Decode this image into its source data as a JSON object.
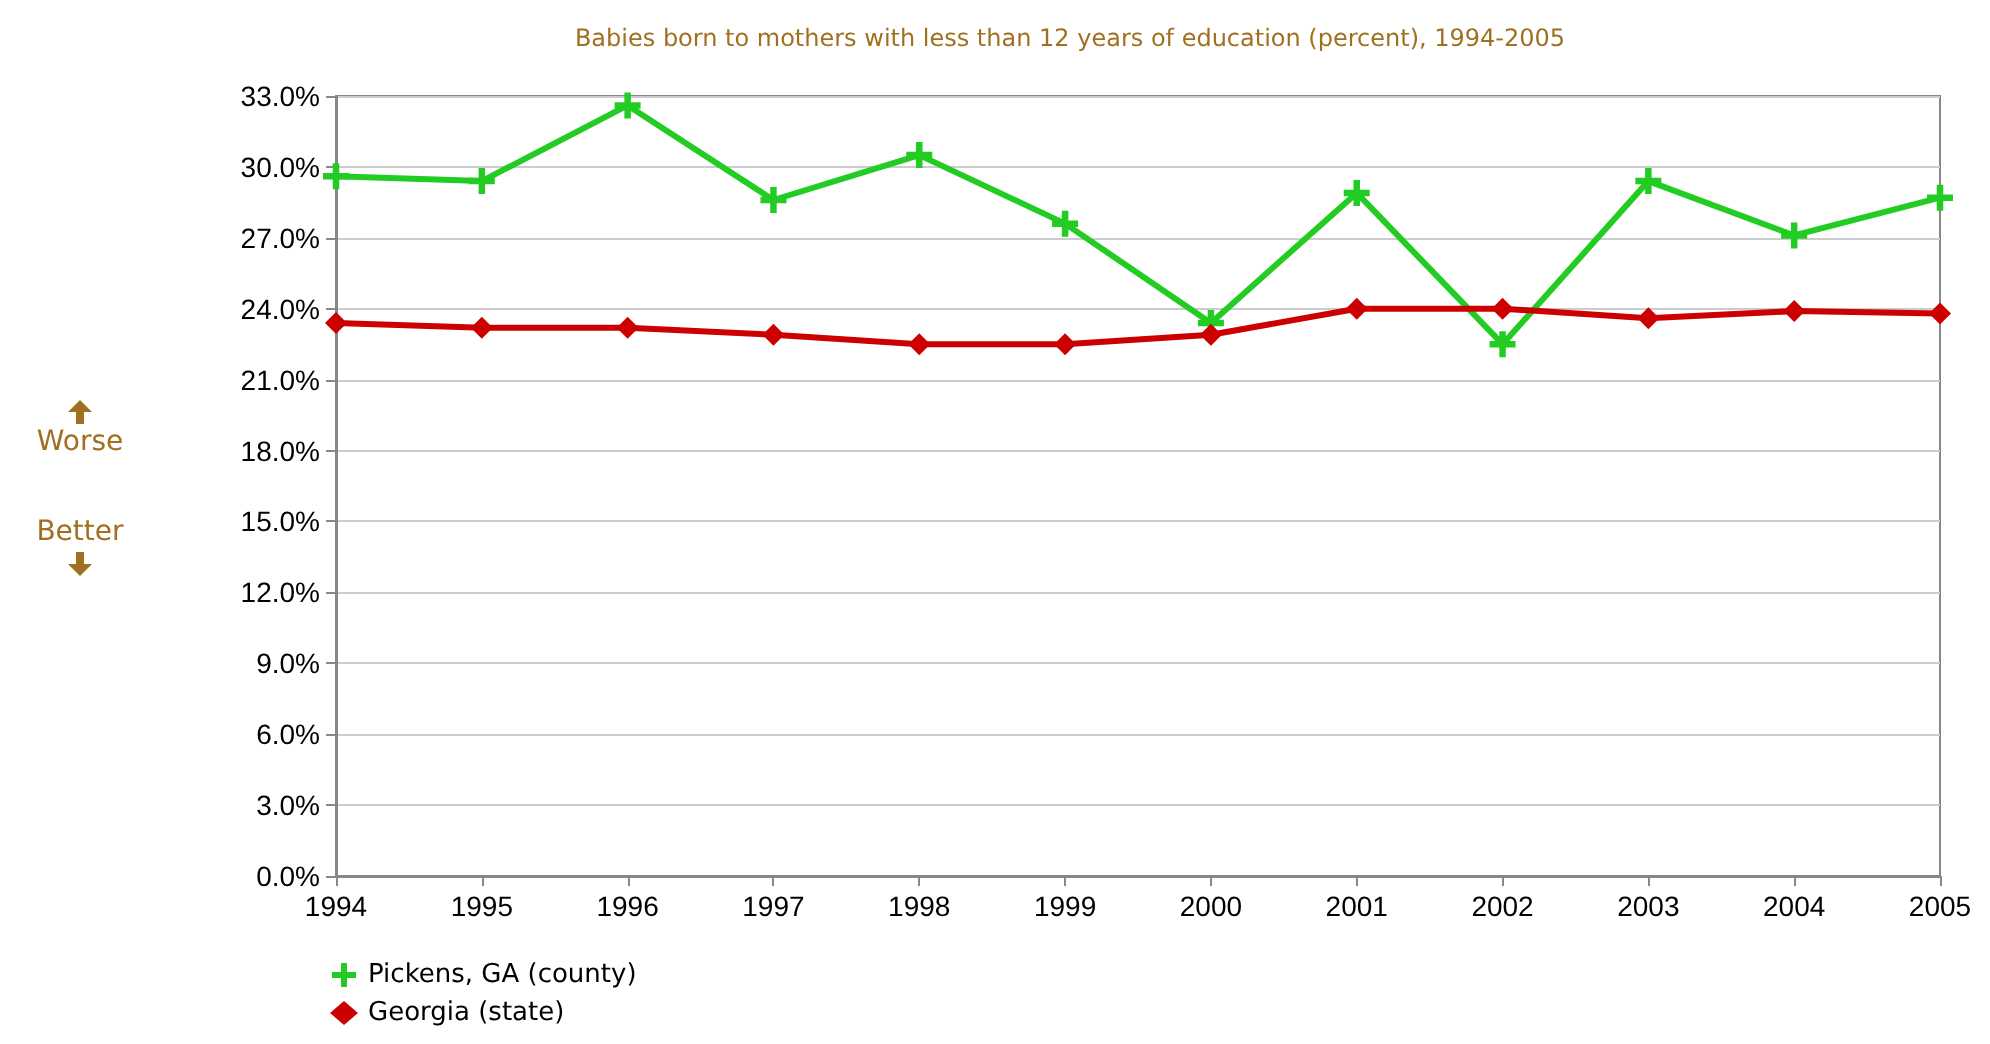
{
  "chart_data": {
    "type": "line",
    "title": "Babies born to mothers with less than 12 years of education (percent), 1994-2005",
    "categories": [
      "1994",
      "1995",
      "1996",
      "1997",
      "1998",
      "1999",
      "2000",
      "2001",
      "2002",
      "2003",
      "2004",
      "2005"
    ],
    "series": [
      {
        "name": "Pickens, GA (county)",
        "color": "#22cc22",
        "marker": "cross",
        "values": [
          29.6,
          29.4,
          32.6,
          28.6,
          30.5,
          27.6,
          23.4,
          28.9,
          22.5,
          29.4,
          27.1,
          28.7
        ]
      },
      {
        "name": "Georgia (state)",
        "color": "#cc0000",
        "marker": "diamond",
        "values": [
          23.4,
          23.2,
          23.2,
          22.9,
          22.5,
          22.5,
          22.9,
          24.0,
          24.0,
          23.6,
          23.9,
          23.8
        ]
      }
    ],
    "ylim": [
      0,
      33
    ],
    "yticks": [
      {
        "value": 0,
        "label": "0.0%"
      },
      {
        "value": 3,
        "label": "3.0%"
      },
      {
        "value": 6,
        "label": "6.0%"
      },
      {
        "value": 9,
        "label": "9.0%"
      },
      {
        "value": 12,
        "label": "12.0%"
      },
      {
        "value": 15,
        "label": "15.0%"
      },
      {
        "value": 18,
        "label": "18.0%"
      },
      {
        "value": 21,
        "label": "21.0%"
      },
      {
        "value": 24,
        "label": "24.0%"
      },
      {
        "value": 27,
        "label": "27.0%"
      },
      {
        "value": 30,
        "label": "30.0%"
      },
      {
        "value": 33,
        "label": "33.0%"
      }
    ],
    "annotations": [
      "Worse",
      "Better"
    ],
    "grid": "y",
    "legend": "bottom left",
    "line_style": "solid"
  }
}
